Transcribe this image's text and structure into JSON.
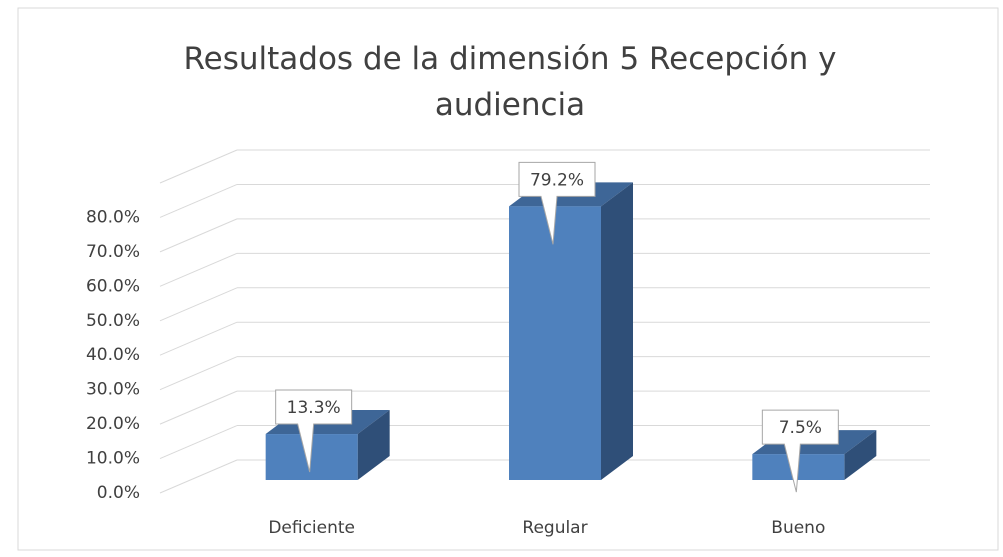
{
  "chart_data": {
    "type": "bar3d",
    "title": "Resultados de la dimensión 5 Recepción y audiencia",
    "categories": [
      "Deficiente",
      "Regular",
      "Bueno"
    ],
    "values": [
      13.3,
      79.2,
      7.5
    ],
    "value_labels": [
      "13.3%",
      "79.2%",
      "7.5%"
    ],
    "color": "#4f81bd",
    "ylim": [
      0,
      90
    ],
    "yticks": [
      {
        "value": 0,
        "label": "0.0%"
      },
      {
        "value": 10,
        "label": "10.0%"
      },
      {
        "value": 20,
        "label": "20.0%"
      },
      {
        "value": 30,
        "label": "30.0%"
      },
      {
        "value": 40,
        "label": "40.0%"
      },
      {
        "value": 50,
        "label": "50.0%"
      },
      {
        "value": 60,
        "label": "60.0%"
      },
      {
        "value": 70,
        "label": "70.0%"
      },
      {
        "value": 80,
        "label": "80.0%"
      }
    ],
    "grid": true
  }
}
